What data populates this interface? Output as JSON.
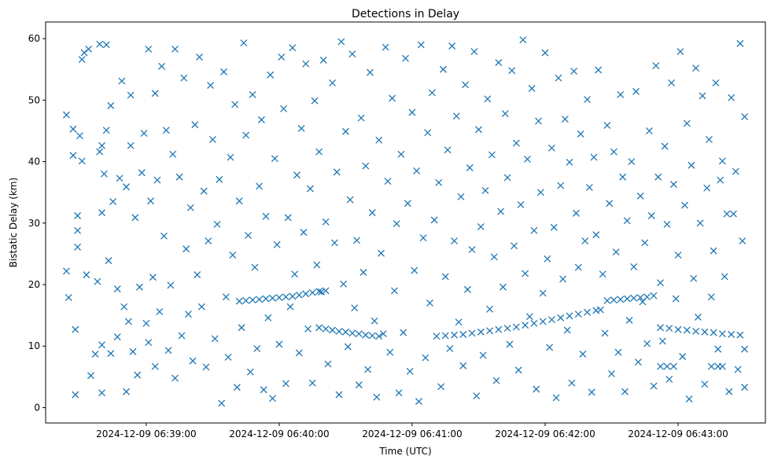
{
  "chart_data": {
    "type": "scatter",
    "title": "Detections in Delay",
    "xlabel": "Time (UTC)",
    "ylabel": "Bistatic Delay (km)",
    "x_units": "seconds after 2024-12-09 06:38:00",
    "xlim": [
      14.6,
      339.4
    ],
    "ylim": [
      -2.5,
      62.7
    ],
    "yticks": [
      0,
      10,
      20,
      30,
      40,
      50,
      60
    ],
    "xticks": [
      {
        "value": 60,
        "label": "2024-12-09 06:39:00"
      },
      {
        "value": 120,
        "label": "2024-12-09 06:40:00"
      },
      {
        "value": 180,
        "label": "2024-12-09 06:41:00"
      },
      {
        "value": 240,
        "label": "2024-12-09 06:42:00"
      },
      {
        "value": 300,
        "label": "2024-12-09 06:43:00"
      }
    ],
    "marker": "x",
    "color": "#1f77b4",
    "grid": false,
    "tracks": [
      {
        "name": "track-a",
        "t": [
          102,
          105,
          108,
          111,
          114,
          117,
          120,
          123,
          126,
          129,
          132,
          135,
          138,
          141
        ],
        "d": [
          17.3,
          17.4,
          17.5,
          17.6,
          17.7,
          17.8,
          17.9,
          18.0,
          18.1,
          18.3,
          18.5,
          18.7,
          18.9,
          19.0
        ]
      },
      {
        "name": "track-b",
        "t": [
          138,
          141,
          144,
          147,
          150,
          153,
          156,
          159,
          162,
          165,
          167
        ],
        "d": [
          13.0,
          12.8,
          12.6,
          12.4,
          12.3,
          12.1,
          12.0,
          11.8,
          11.7,
          11.6,
          12.0
        ]
      },
      {
        "name": "track-c",
        "t": [
          191,
          195,
          199,
          203,
          207,
          211,
          215,
          219,
          223,
          227,
          231,
          235,
          239,
          243,
          247,
          251,
          255,
          259,
          263,
          265
        ],
        "d": [
          11.6,
          11.7,
          11.8,
          11.9,
          12.1,
          12.3,
          12.5,
          12.7,
          12.9,
          13.1,
          13.4,
          13.7,
          14.0,
          14.3,
          14.6,
          14.9,
          15.2,
          15.5,
          15.8,
          15.9
        ]
      },
      {
        "name": "track-d",
        "t": [
          268,
          271,
          274,
          277,
          280,
          283,
          286,
          289
        ],
        "d": [
          17.4,
          17.5,
          17.6,
          17.7,
          17.8,
          17.9,
          18.0,
          18.2
        ]
      },
      {
        "name": "track-e",
        "t": [
          292,
          296,
          300,
          304,
          308,
          312,
          316,
          320,
          324,
          328
        ],
        "d": [
          13.0,
          12.9,
          12.7,
          12.6,
          12.4,
          12.3,
          12.2,
          12.0,
          11.9,
          11.8
        ]
      },
      {
        "name": "track-f",
        "t": [
          292,
          295,
          298,
          315,
          318,
          320
        ],
        "d": [
          6.7,
          6.7,
          6.7,
          6.7,
          6.7,
          6.7
        ]
      }
    ],
    "noise": [
      [
        24,
        47.6
      ],
      [
        24,
        22.2
      ],
      [
        25,
        17.9
      ],
      [
        27,
        45.3
      ],
      [
        27,
        41.0
      ],
      [
        28,
        2.1
      ],
      [
        28,
        12.7
      ],
      [
        29,
        31.2
      ],
      [
        29,
        28.8
      ],
      [
        29,
        26.1
      ],
      [
        30,
        44.2
      ],
      [
        31,
        40.1
      ],
      [
        31,
        56.6
      ],
      [
        32,
        57.7
      ],
      [
        33,
        21.6
      ],
      [
        34,
        58.3
      ],
      [
        35,
        5.2
      ],
      [
        37,
        8.7
      ],
      [
        38,
        20.5
      ],
      [
        39,
        41.6
      ],
      [
        39,
        59.1
      ],
      [
        40,
        42.6
      ],
      [
        40,
        31.7
      ],
      [
        40,
        10.2
      ],
      [
        40,
        2.4
      ],
      [
        41,
        38.0
      ],
      [
        42,
        45.1
      ],
      [
        42,
        59.0
      ],
      [
        43,
        23.9
      ],
      [
        44,
        49.1
      ],
      [
        44,
        8.8
      ],
      [
        45,
        33.5
      ],
      [
        47,
        19.3
      ],
      [
        47,
        11.5
      ],
      [
        48,
        37.3
      ],
      [
        49,
        53.1
      ],
      [
        50,
        16.4
      ],
      [
        51,
        35.9
      ],
      [
        51,
        2.6
      ],
      [
        52,
        14.0
      ],
      [
        53,
        50.8
      ],
      [
        53,
        42.6
      ],
      [
        54,
        9.1
      ],
      [
        55,
        30.9
      ],
      [
        56,
        5.3
      ],
      [
        57,
        19.6
      ],
      [
        58,
        38.2
      ],
      [
        59,
        44.6
      ],
      [
        60,
        13.7
      ],
      [
        61,
        58.3
      ],
      [
        61,
        10.6
      ],
      [
        62,
        33.6
      ],
      [
        63,
        21.2
      ],
      [
        64,
        51.1
      ],
      [
        64,
        6.7
      ],
      [
        65,
        37.0
      ],
      [
        66,
        15.6
      ],
      [
        67,
        55.5
      ],
      [
        68,
        27.9
      ],
      [
        69,
        45.1
      ],
      [
        70,
        9.3
      ],
      [
        71,
        19.9
      ],
      [
        72,
        41.2
      ],
      [
        73,
        4.8
      ],
      [
        73,
        58.3
      ],
      [
        75,
        37.5
      ],
      [
        76,
        11.7
      ],
      [
        77,
        53.6
      ],
      [
        78,
        25.8
      ],
      [
        79,
        15.2
      ],
      [
        80,
        32.5
      ],
      [
        81,
        7.6
      ],
      [
        82,
        46.0
      ],
      [
        83,
        21.6
      ],
      [
        84,
        57.0
      ],
      [
        85,
        16.4
      ],
      [
        86,
        35.2
      ],
      [
        87,
        6.6
      ],
      [
        88,
        27.1
      ],
      [
        89,
        52.4
      ],
      [
        90,
        43.6
      ],
      [
        91,
        11.2
      ],
      [
        92,
        29.8
      ],
      [
        93,
        37.1
      ],
      [
        94,
        0.7
      ],
      [
        95,
        54.6
      ],
      [
        96,
        18.0
      ],
      [
        97,
        8.2
      ],
      [
        98,
        40.7
      ],
      [
        99,
        24.8
      ],
      [
        100,
        49.3
      ],
      [
        101,
        3.3
      ],
      [
        102,
        33.6
      ],
      [
        103,
        13.0
      ],
      [
        104,
        59.3
      ],
      [
        105,
        44.3
      ],
      [
        106,
        28.0
      ],
      [
        107,
        5.8
      ],
      [
        108,
        50.9
      ],
      [
        109,
        22.8
      ],
      [
        110,
        9.6
      ],
      [
        111,
        36.0
      ],
      [
        112,
        46.8
      ],
      [
        113,
        2.9
      ],
      [
        114,
        31.1
      ],
      [
        115,
        14.6
      ],
      [
        116,
        54.1
      ],
      [
        117,
        1.5
      ],
      [
        118,
        40.5
      ],
      [
        119,
        26.5
      ],
      [
        120,
        10.3
      ],
      [
        121,
        57.0
      ],
      [
        122,
        48.6
      ],
      [
        123,
        3.9
      ],
      [
        124,
        30.9
      ],
      [
        125,
        16.4
      ],
      [
        126,
        58.5
      ],
      [
        127,
        21.7
      ],
      [
        128,
        37.8
      ],
      [
        129,
        8.9
      ],
      [
        130,
        45.4
      ],
      [
        131,
        28.5
      ],
      [
        132,
        55.9
      ],
      [
        133,
        12.8
      ],
      [
        134,
        35.6
      ],
      [
        135,
        4.0
      ],
      [
        136,
        49.9
      ],
      [
        137,
        23.2
      ],
      [
        138,
        41.6
      ],
      [
        139,
        18.8
      ],
      [
        140,
        56.5
      ],
      [
        141,
        30.2
      ],
      [
        142,
        7.1
      ],
      [
        144,
        52.8
      ],
      [
        145,
        26.8
      ],
      [
        146,
        38.3
      ],
      [
        147,
        2.1
      ],
      [
        148,
        59.5
      ],
      [
        149,
        20.1
      ],
      [
        150,
        44.9
      ],
      [
        151,
        9.9
      ],
      [
        152,
        33.8
      ],
      [
        153,
        57.5
      ],
      [
        154,
        16.2
      ],
      [
        155,
        27.2
      ],
      [
        156,
        3.7
      ],
      [
        157,
        47.1
      ],
      [
        158,
        22.0
      ],
      [
        159,
        39.3
      ],
      [
        160,
        6.2
      ],
      [
        161,
        54.5
      ],
      [
        162,
        31.7
      ],
      [
        163,
        14.1
      ],
      [
        164,
        1.7
      ],
      [
        165,
        43.5
      ],
      [
        166,
        25.1
      ],
      [
        168,
        58.6
      ],
      [
        169,
        36.8
      ],
      [
        170,
        9.0
      ],
      [
        171,
        50.3
      ],
      [
        172,
        19.0
      ],
      [
        173,
        29.9
      ],
      [
        174,
        2.4
      ],
      [
        175,
        41.2
      ],
      [
        176,
        12.2
      ],
      [
        177,
        56.8
      ],
      [
        178,
        33.2
      ],
      [
        179,
        5.9
      ],
      [
        180,
        48.0
      ],
      [
        181,
        22.3
      ],
      [
        182,
        38.5
      ],
      [
        183,
        1.0
      ],
      [
        184,
        59.0
      ],
      [
        185,
        27.6
      ],
      [
        186,
        8.1
      ],
      [
        187,
        44.7
      ],
      [
        188,
        17.0
      ],
      [
        189,
        51.2
      ],
      [
        190,
        30.5
      ],
      [
        192,
        36.6
      ],
      [
        193,
        3.4
      ],
      [
        194,
        55.0
      ],
      [
        195,
        21.3
      ],
      [
        196,
        41.9
      ],
      [
        197,
        9.6
      ],
      [
        198,
        58.8
      ],
      [
        199,
        27.1
      ],
      [
        200,
        47.4
      ],
      [
        201,
        13.9
      ],
      [
        202,
        34.3
      ],
      [
        203,
        6.8
      ],
      [
        204,
        52.5
      ],
      [
        205,
        19.2
      ],
      [
        206,
        39.0
      ],
      [
        207,
        25.7
      ],
      [
        208,
        57.9
      ],
      [
        209,
        1.9
      ],
      [
        210,
        45.2
      ],
      [
        211,
        29.4
      ],
      [
        212,
        8.5
      ],
      [
        213,
        35.3
      ],
      [
        214,
        50.2
      ],
      [
        215,
        16.0
      ],
      [
        216,
        41.1
      ],
      [
        217,
        24.5
      ],
      [
        218,
        4.4
      ],
      [
        219,
        56.1
      ],
      [
        220,
        31.9
      ],
      [
        221,
        19.6
      ],
      [
        222,
        47.8
      ],
      [
        223,
        37.4
      ],
      [
        224,
        10.3
      ],
      [
        225,
        54.8
      ],
      [
        226,
        26.3
      ],
      [
        227,
        43.0
      ],
      [
        228,
        6.1
      ],
      [
        229,
        33.0
      ],
      [
        230,
        59.8
      ],
      [
        231,
        21.8
      ],
      [
        232,
        40.4
      ],
      [
        233,
        14.8
      ],
      [
        234,
        51.9
      ],
      [
        235,
        28.8
      ],
      [
        236,
        3.0
      ],
      [
        237,
        46.6
      ],
      [
        238,
        35.0
      ],
      [
        239,
        18.6
      ],
      [
        240,
        57.7
      ],
      [
        241,
        24.2
      ],
      [
        242,
        9.8
      ],
      [
        243,
        42.2
      ],
      [
        244,
        29.3
      ],
      [
        245,
        1.6
      ],
      [
        246,
        53.6
      ],
      [
        247,
        36.1
      ],
      [
        248,
        20.9
      ],
      [
        249,
        46.9
      ],
      [
        250,
        12.6
      ],
      [
        251,
        39.9
      ],
      [
        252,
        4.0
      ],
      [
        253,
        54.7
      ],
      [
        254,
        31.6
      ],
      [
        255,
        22.8
      ],
      [
        256,
        44.5
      ],
      [
        257,
        8.7
      ],
      [
        258,
        27.1
      ],
      [
        259,
        50.1
      ],
      [
        260,
        35.8
      ],
      [
        261,
        2.5
      ],
      [
        262,
        40.7
      ],
      [
        263,
        28.1
      ],
      [
        264,
        54.9
      ],
      [
        266,
        21.7
      ],
      [
        267,
        12.1
      ],
      [
        268,
        45.9
      ],
      [
        269,
        33.2
      ],
      [
        270,
        5.5
      ],
      [
        271,
        41.6
      ],
      [
        272,
        25.3
      ],
      [
        273,
        9.0
      ],
      [
        274,
        50.9
      ],
      [
        275,
        37.5
      ],
      [
        276,
        2.6
      ],
      [
        277,
        30.4
      ],
      [
        278,
        14.2
      ],
      [
        279,
        40.0
      ],
      [
        280,
        22.9
      ],
      [
        281,
        51.4
      ],
      [
        282,
        7.4
      ],
      [
        283,
        34.4
      ],
      [
        284,
        17.2
      ],
      [
        285,
        26.8
      ],
      [
        286,
        10.4
      ],
      [
        287,
        45.0
      ],
      [
        288,
        31.2
      ],
      [
        289,
        3.5
      ],
      [
        290,
        55.6
      ],
      [
        291,
        37.5
      ],
      [
        292,
        20.3
      ],
      [
        293,
        10.8
      ],
      [
        294,
        42.5
      ],
      [
        295,
        29.8
      ],
      [
        296,
        4.6
      ],
      [
        297,
        52.8
      ],
      [
        298,
        36.3
      ],
      [
        299,
        17.7
      ],
      [
        300,
        24.8
      ],
      [
        301,
        57.9
      ],
      [
        302,
        8.3
      ],
      [
        303,
        32.9
      ],
      [
        304,
        46.2
      ],
      [
        305,
        1.4
      ],
      [
        306,
        39.4
      ],
      [
        307,
        21.0
      ],
      [
        308,
        55.2
      ],
      [
        309,
        14.7
      ],
      [
        310,
        30.0
      ],
      [
        311,
        50.7
      ],
      [
        312,
        3.8
      ],
      [
        313,
        35.7
      ],
      [
        314,
        43.6
      ],
      [
        315,
        18.0
      ],
      [
        316,
        25.5
      ],
      [
        317,
        52.8
      ],
      [
        318,
        9.5
      ],
      [
        319,
        37.0
      ],
      [
        320,
        40.1
      ],
      [
        321,
        21.3
      ],
      [
        322,
        31.5
      ],
      [
        323,
        2.6
      ],
      [
        324,
        50.4
      ],
      [
        325,
        31.5
      ],
      [
        326,
        38.4
      ],
      [
        327,
        6.2
      ],
      [
        328,
        59.2
      ],
      [
        329,
        27.1
      ],
      [
        330,
        47.3
      ],
      [
        330,
        9.5
      ],
      [
        330,
        3.3
      ]
    ]
  }
}
